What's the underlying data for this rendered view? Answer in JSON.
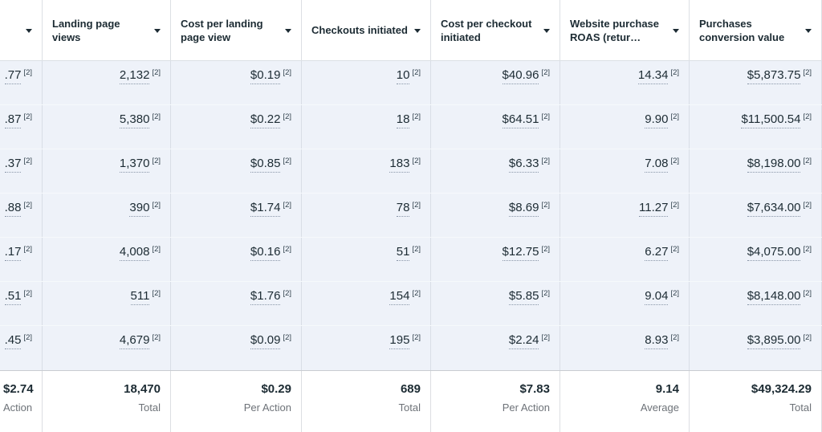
{
  "table": {
    "footnote_marker": "[2]",
    "row_count": 7,
    "colors": {
      "row_highlight": "#eef2f9",
      "header_text": "#1c2b33",
      "footer_label_gray": "#6d7278",
      "dotted_underline": "#8996a8"
    },
    "columns": [
      {
        "id": "truncated-left",
        "label": "",
        "values": [
          ".77",
          ".87",
          ".37",
          ".88",
          ".17",
          ".51",
          ".45"
        ],
        "footer": {
          "value": "$2.74",
          "label": "Action"
        }
      },
      {
        "id": "landing-page-views",
        "label": "Landing page views",
        "values": [
          "2,132",
          "5,380",
          "1,370",
          "390",
          "4,008",
          "511",
          "4,679"
        ],
        "footer": {
          "value": "18,470",
          "label": "Total"
        }
      },
      {
        "id": "cost-per-landing-page-view",
        "label": "Cost per landing page view",
        "values": [
          "$0.19",
          "$0.22",
          "$0.85",
          "$1.74",
          "$0.16",
          "$1.76",
          "$0.09"
        ],
        "footer": {
          "value": "$0.29",
          "label": "Per Action"
        }
      },
      {
        "id": "checkouts-initiated",
        "label": "Checkouts initiated",
        "values": [
          "10",
          "18",
          "183",
          "78",
          "51",
          "154",
          "195"
        ],
        "footer": {
          "value": "689",
          "label": "Total"
        }
      },
      {
        "id": "cost-per-checkout-initiated",
        "label": "Cost per checkout initiated",
        "values": [
          "$40.96",
          "$64.51",
          "$6.33",
          "$8.69",
          "$12.75",
          "$5.85",
          "$2.24"
        ],
        "footer": {
          "value": "$7.83",
          "label": "Per Action"
        }
      },
      {
        "id": "website-purchase-roas",
        "label": "Website purchase ROAS (retur…",
        "values": [
          "14.34",
          "9.90",
          "7.08",
          "11.27",
          "6.27",
          "9.04",
          "8.93"
        ],
        "footer": {
          "value": "9.14",
          "label": "Average"
        }
      },
      {
        "id": "purchases-conversion-value",
        "label": "Purchases conversion value",
        "values": [
          "$5,873.75",
          "$11,500.54",
          "$8,198.00",
          "$7,634.00",
          "$4,075.00",
          "$8,148.00",
          "$3,895.00"
        ],
        "footer": {
          "value": "$49,324.29",
          "label": "Total"
        }
      }
    ]
  }
}
